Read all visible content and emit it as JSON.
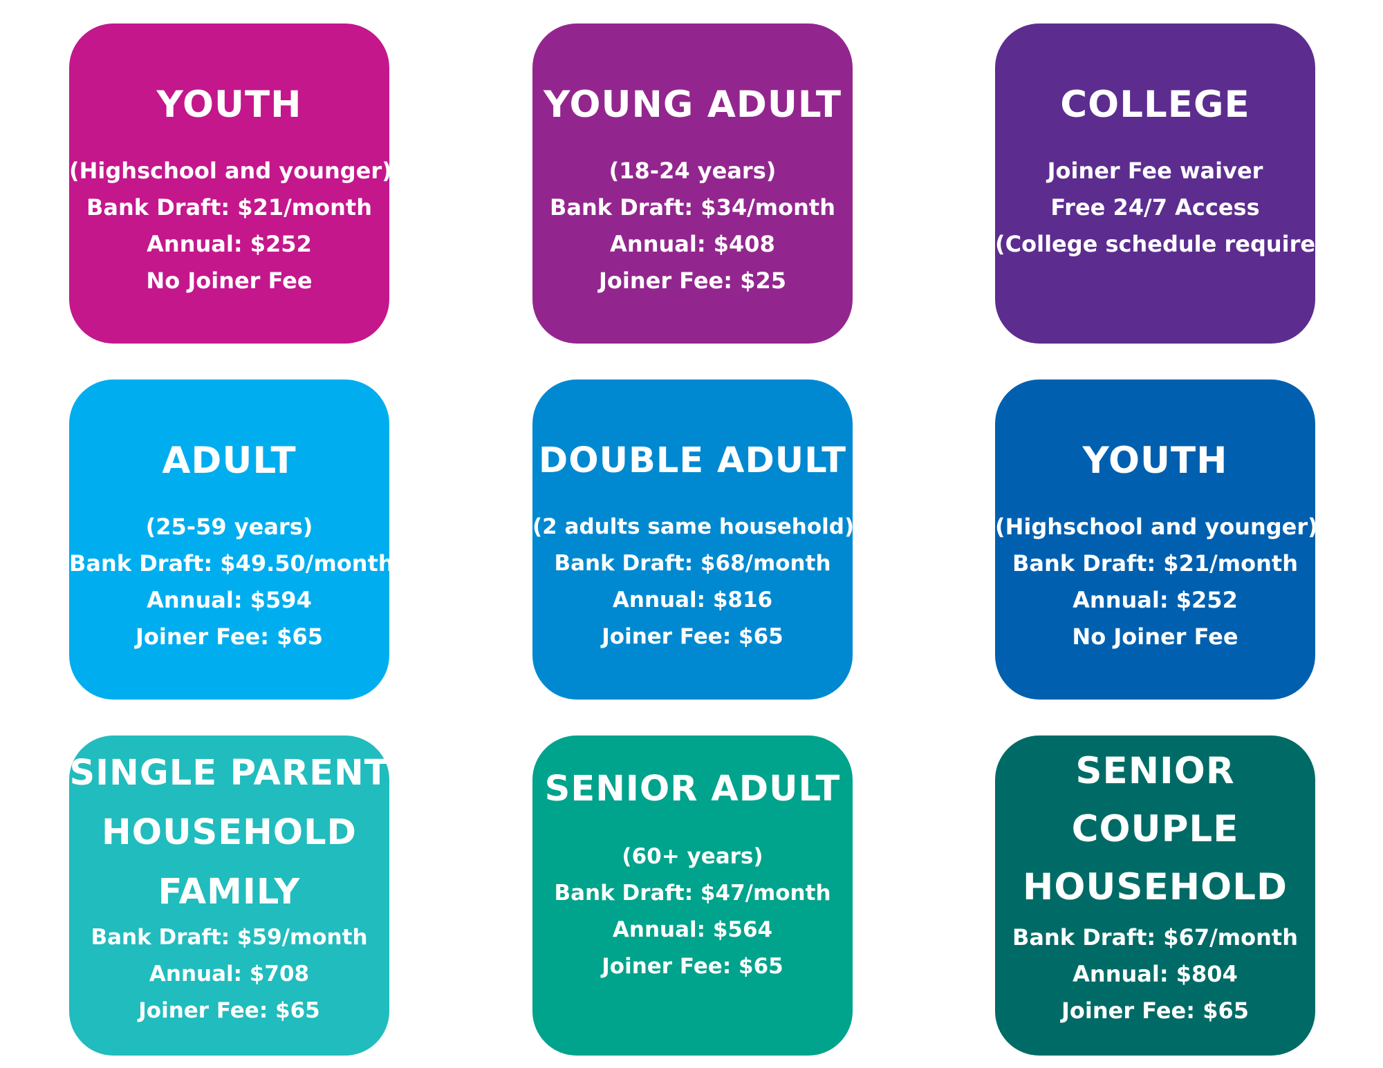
{
  "cards": [
    {
      "title": "YOUTH",
      "color": "#c4178c",
      "lines": [
        "(Highschool and younger)",
        "Bank Draft: $21/month",
        "Annual: $252",
        "No Joiner Fee"
      ]
    },
    {
      "title": "YOUNG ADULT",
      "color": "#93268e",
      "lines": [
        "(18-24 years)",
        "Bank Draft: $34/month",
        "Annual: $408",
        "Joiner Fee: $25"
      ]
    },
    {
      "title": "COLLEGE",
      "color": "#5c2d8f",
      "lines": [
        "Joiner Fee waiver",
        "Free 24/7 Access",
        "(College schedule required)"
      ]
    },
    {
      "title": "ADULT",
      "color": "#00aeef",
      "lines": [
        "(25-59 years)",
        "Bank Draft: $49.50/month",
        "Annual: $594",
        "Joiner Fee: $65"
      ]
    },
    {
      "title": "DOUBLE ADULT",
      "color": "#0089d0",
      "lines": [
        "(2 adults same household)",
        "Bank Draft: $68/month",
        "Annual: $816",
        "Joiner Fee: $65"
      ]
    },
    {
      "title": "YOUTH",
      "color": "#0060af",
      "lines": [
        "(Highschool and younger)",
        "Bank Draft: $21/month",
        "Annual: $252",
        "No Joiner Fee"
      ]
    },
    {
      "title_lines": [
        "SINGLE PARENT",
        "HOUSEHOLD",
        "FAMILY"
      ],
      "color": "#21bcbd",
      "lines": [
        "Bank Draft: $59/month",
        "Annual: $708",
        "Joiner Fee: $65"
      ]
    },
    {
      "title": "SENIOR ADULT",
      "color": "#00a38b",
      "lines": [
        "(60+ years)",
        "Bank Draft: $47/month",
        "Annual: $564",
        "Joiner Fee: $65"
      ]
    },
    {
      "title_lines": [
        "SENIOR",
        "COUPLE",
        "HOUSEHOLD"
      ],
      "color": "#006b66",
      "lines": [
        "Bank Draft: $67/month",
        "Annual: $804",
        "Joiner Fee: $65"
      ]
    }
  ]
}
